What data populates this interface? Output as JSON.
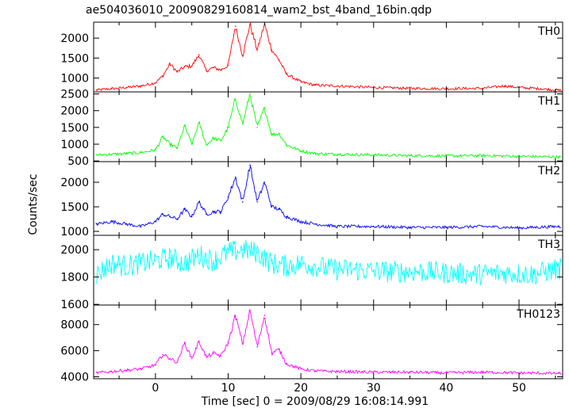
{
  "chart_data": {
    "type": "line",
    "title": "ae504036010_20090829160814_wam2_bst_4band_16bin.qdp",
    "xlabel": "Time [sec] 0 = 2009/08/29 16:08:14.991",
    "ylabel": "Counts/sec",
    "xlim": [
      -8.5,
      56
    ],
    "x_ticks": [
      0,
      10,
      20,
      30,
      40,
      50
    ],
    "panels": [
      {
        "name": "TH0",
        "color": "#ff0000",
        "ylim": [
          650,
          2400
        ],
        "y_ticks": [
          1000,
          1500,
          2000
        ],
        "x": [
          -8,
          -6,
          -4,
          -2,
          0,
          1,
          2,
          3,
          4,
          5,
          6,
          7,
          8,
          9,
          10,
          11,
          12,
          13,
          14,
          15,
          16,
          17,
          18,
          20,
          22,
          25,
          30,
          35,
          40,
          45,
          48,
          50,
          53,
          55.5
        ],
        "y": [
          700,
          730,
          760,
          800,
          880,
          1050,
          1350,
          1150,
          1280,
          1300,
          1580,
          1180,
          1260,
          1200,
          1320,
          2300,
          1550,
          2350,
          1700,
          2350,
          1700,
          1450,
          1100,
          900,
          820,
          800,
          760,
          740,
          730,
          740,
          800,
          760,
          730,
          690
        ]
      },
      {
        "name": "TH1",
        "color": "#00ff00",
        "ylim": [
          480,
          2560
        ],
        "y_ticks": [
          500,
          1000,
          1500,
          2000,
          2500
        ],
        "x": [
          -8,
          -6,
          -4,
          -2,
          0,
          1,
          2,
          3,
          4,
          5,
          6,
          7,
          8,
          9,
          10,
          11,
          12,
          13,
          14,
          15,
          16,
          17,
          18,
          20,
          22,
          25,
          30,
          35,
          40,
          45,
          50,
          55.5
        ],
        "y": [
          680,
          700,
          720,
          750,
          830,
          1220,
          1000,
          880,
          1550,
          1000,
          1640,
          980,
          1180,
          1100,
          1500,
          2350,
          1600,
          2500,
          1500,
          2080,
          1280,
          1320,
          980,
          800,
          720,
          700,
          680,
          660,
          650,
          660,
          640,
          620
        ]
      },
      {
        "name": "TH2",
        "color": "#0000ff",
        "ylim": [
          920,
          2420
        ],
        "y_ticks": [
          1000,
          1500,
          2000
        ],
        "x": [
          -8,
          -6,
          -4,
          -2,
          0,
          1,
          2,
          3,
          4,
          5,
          6,
          7,
          8,
          9,
          10,
          11,
          12,
          13,
          14,
          15,
          16,
          17,
          18,
          20,
          22,
          25,
          30,
          35,
          40,
          45,
          50,
          55.5
        ],
        "y": [
          1150,
          1200,
          1150,
          1100,
          1200,
          1350,
          1300,
          1250,
          1450,
          1300,
          1600,
          1350,
          1400,
          1400,
          1700,
          2100,
          1600,
          2350,
          1600,
          2000,
          1500,
          1450,
          1300,
          1200,
          1150,
          1100,
          1100,
          1080,
          1080,
          1100,
          1070,
          1100
        ]
      },
      {
        "name": "TH3",
        "color": "#00ffff",
        "ylim": [
          1595,
          2105
        ],
        "y_ticks": [
          1600,
          1800,
          2000
        ],
        "x": [
          -8,
          -6,
          -4,
          -2,
          0,
          2,
          4,
          6,
          8,
          10,
          12,
          14,
          16,
          18,
          20,
          24,
          28,
          32,
          36,
          40,
          44,
          48,
          52,
          55.5
        ],
        "y": [
          1820,
          1900,
          1880,
          1900,
          1920,
          1940,
          1900,
          1960,
          1920,
          1980,
          2000,
          1980,
          1900,
          1880,
          1900,
          1860,
          1850,
          1840,
          1840,
          1830,
          1820,
          1830,
          1820,
          1860
        ]
      },
      {
        "name": "TH0123",
        "color": "#ff00ff",
        "ylim": [
          3850,
          9500
        ],
        "y_ticks": [
          4000,
          6000,
          8000
        ],
        "x": [
          -8,
          -6,
          -4,
          -2,
          0,
          1,
          2,
          3,
          4,
          5,
          6,
          7,
          8,
          9,
          10,
          11,
          12,
          13,
          14,
          15,
          16,
          17,
          18,
          20,
          22,
          25,
          30,
          35,
          40,
          45,
          50,
          55.5
        ],
        "y": [
          4300,
          4400,
          4500,
          4600,
          4900,
          5700,
          5400,
          5100,
          6600,
          5400,
          6700,
          5500,
          5800,
          5600,
          6600,
          8700,
          6500,
          9100,
          6300,
          8700,
          5800,
          6100,
          5000,
          4600,
          4450,
          4400,
          4350,
          4350,
          4300,
          4350,
          4300,
          4250
        ]
      }
    ]
  }
}
